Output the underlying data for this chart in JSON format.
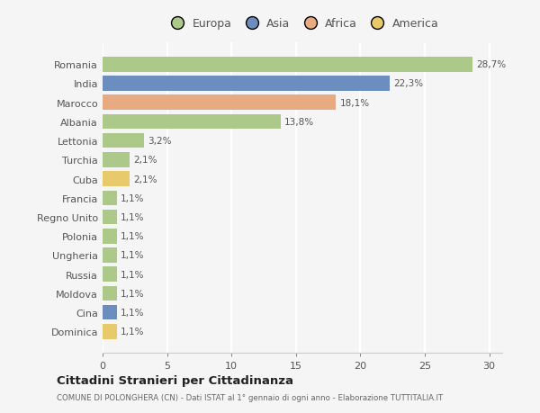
{
  "countries": [
    "Romania",
    "India",
    "Marocco",
    "Albania",
    "Lettonia",
    "Turchia",
    "Cuba",
    "Francia",
    "Regno Unito",
    "Polonia",
    "Ungheria",
    "Russia",
    "Moldova",
    "Cina",
    "Dominica"
  ],
  "values": [
    28.7,
    22.3,
    18.1,
    13.8,
    3.2,
    2.1,
    2.1,
    1.1,
    1.1,
    1.1,
    1.1,
    1.1,
    1.1,
    1.1,
    1.1
  ],
  "labels": [
    "28,7%",
    "22,3%",
    "18,1%",
    "13,8%",
    "3,2%",
    "2,1%",
    "2,1%",
    "1,1%",
    "1,1%",
    "1,1%",
    "1,1%",
    "1,1%",
    "1,1%",
    "1,1%",
    "1,1%"
  ],
  "colors": [
    "#adc98a",
    "#6b8ebf",
    "#e8aa80",
    "#adc98a",
    "#adc98a",
    "#adc98a",
    "#e8c96b",
    "#adc98a",
    "#adc98a",
    "#adc98a",
    "#adc98a",
    "#adc98a",
    "#adc98a",
    "#6b8ebf",
    "#e8c96b"
  ],
  "legend_labels": [
    "Europa",
    "Asia",
    "Africa",
    "America"
  ],
  "legend_colors": [
    "#adc98a",
    "#6b8ebf",
    "#e8aa80",
    "#e8c96b"
  ],
  "title": "Cittadini Stranieri per Cittadinanza",
  "subtitle": "COMUNE DI POLONGHERA (CN) - Dati ISTAT al 1° gennaio di ogni anno - Elaborazione TUTTITALIA.IT",
  "xlim": [
    0,
    31
  ],
  "bg_color": "#f5f5f5",
  "grid_color": "#ffffff",
  "bar_height": 0.78
}
